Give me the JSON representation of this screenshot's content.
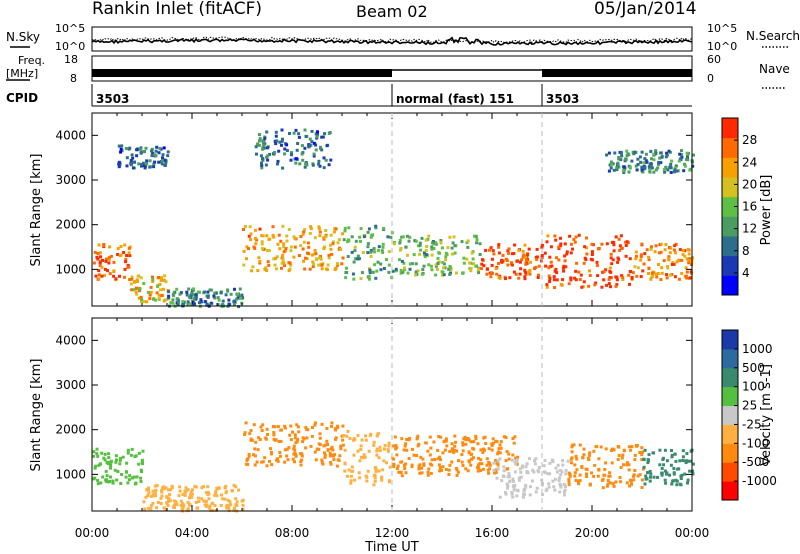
{
  "header": {
    "title": "Rankin Inlet (fitACF)",
    "beam": "Beam 02",
    "date": "05/Jan/2014"
  },
  "noise_panel": {
    "left_label": "N.Sky",
    "left_ticks": [
      "10^5",
      "10^0"
    ],
    "right_label": "N.Search",
    "right_ticks": [
      "10^5",
      "10^0"
    ]
  },
  "freq_panel": {
    "left_label_1": "Freq.",
    "left_label_2": "[MHz]",
    "left_ticks": [
      "18",
      "8"
    ],
    "right_label": "Nave",
    "right_ticks": [
      "60",
      "0"
    ]
  },
  "cpid_panel": {
    "label": "CPID",
    "segments": [
      {
        "start": 0,
        "end": 12,
        "text": "3503"
      },
      {
        "start": 12,
        "end": 18,
        "text": "normal (fast) 151"
      },
      {
        "start": 18,
        "end": 24,
        "text": "3503"
      }
    ]
  },
  "colors": {
    "power_scale": [
      "#0000ff",
      "#1a3ab4",
      "#2d6e8c",
      "#4a9c60",
      "#5fbf45",
      "#d4c020",
      "#f7a000",
      "#ff6a00",
      "#ff2a00"
    ],
    "velocity_scale": [
      "#ff0000",
      "#ff4a00",
      "#ff8a10",
      "#ffb040",
      "#c8c8c8",
      "#55c040",
      "#3a8a70",
      "#2c6aa0",
      "#1a3aa8"
    ]
  },
  "chart_data": [
    {
      "type": "heatmap",
      "panel": "power",
      "ylabel": "Slant Range [km]",
      "yticks": [
        "4000",
        "3000",
        "2000",
        "1000"
      ],
      "ylim": [
        180,
        4500
      ],
      "xlim": [
        0,
        24
      ],
      "grid": false,
      "colorbar": {
        "label": "Power [dB]",
        "ticks": [
          "28",
          "24",
          "20",
          "16",
          "12",
          "8",
          "4"
        ],
        "range": [
          0,
          30
        ]
      },
      "echo_bands": [
        {
          "x": [
            0,
            1.5
          ],
          "y": [
            800,
            1600
          ],
          "value": 26
        },
        {
          "x": [
            1.5,
            3
          ],
          "y": [
            300,
            900
          ],
          "value": 20
        },
        {
          "x": [
            3,
            6
          ],
          "y": [
            200,
            600
          ],
          "value": 10
        },
        {
          "x": [
            6,
            10
          ],
          "y": [
            1000,
            2000
          ],
          "value": 22
        },
        {
          "x": [
            10,
            12
          ],
          "y": [
            800,
            2000
          ],
          "value": 12
        },
        {
          "x": [
            12,
            15.5
          ],
          "y": [
            900,
            1800
          ],
          "value": 14
        },
        {
          "x": [
            15.5,
            18
          ],
          "y": [
            800,
            1600
          ],
          "value": 27
        },
        {
          "x": [
            18,
            21.5
          ],
          "y": [
            600,
            1800
          ],
          "value": 28
        },
        {
          "x": [
            21.5,
            24
          ],
          "y": [
            800,
            1600
          ],
          "value": 24
        },
        {
          "x": [
            1,
            3
          ],
          "y": [
            3300,
            3800
          ],
          "value": 8
        },
        {
          "x": [
            6.5,
            9.5
          ],
          "y": [
            3300,
            4200
          ],
          "value": 8
        },
        {
          "x": [
            20.5,
            24
          ],
          "y": [
            3200,
            3700
          ],
          "value": 10
        }
      ]
    },
    {
      "type": "heatmap",
      "panel": "velocity",
      "xlabel": "Time UT",
      "xticks": [
        "00:00",
        "04:00",
        "08:00",
        "12:00",
        "16:00",
        "20:00",
        "00:00"
      ],
      "ylabel": "Slant Range [km]",
      "yticks": [
        "4000",
        "3000",
        "2000",
        "1000"
      ],
      "ylim": [
        180,
        4500
      ],
      "xlim": [
        0,
        24
      ],
      "grid": false,
      "colorbar": {
        "label": "Velocity [m s-1]",
        "ticks": [
          "1000",
          "500",
          "100",
          "25",
          "-25",
          "-100",
          "-500",
          "-1000"
        ]
      },
      "echo_bands": [
        {
          "x": [
            0,
            2
          ],
          "y": [
            800,
            1600
          ],
          "value": 150
        },
        {
          "x": [
            2,
            6
          ],
          "y": [
            200,
            800
          ],
          "value": -200
        },
        {
          "x": [
            6,
            10
          ],
          "y": [
            1200,
            2200
          ],
          "value": -400
        },
        {
          "x": [
            10,
            12
          ],
          "y": [
            800,
            2000
          ],
          "value": -300
        },
        {
          "x": [
            12,
            17
          ],
          "y": [
            1000,
            1900
          ],
          "value": -500
        },
        {
          "x": [
            16,
            19
          ],
          "y": [
            500,
            1400
          ],
          "value": 0
        },
        {
          "x": [
            19,
            22
          ],
          "y": [
            700,
            1700
          ],
          "value": -500
        },
        {
          "x": [
            22,
            24
          ],
          "y": [
            800,
            1600
          ],
          "value": 400
        }
      ]
    }
  ]
}
